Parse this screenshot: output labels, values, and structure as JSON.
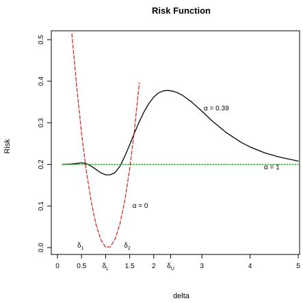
{
  "chart_data": {
    "type": "line",
    "title": "Risk Function",
    "xlabel": "delta",
    "ylabel": "Risk",
    "xlim": [
      0,
      5
    ],
    "ylim": [
      0,
      0.5
    ],
    "grid": false,
    "y_ticks": [
      {
        "value": 0.0,
        "label": "0.0"
      },
      {
        "value": 0.1,
        "label": "0.1"
      },
      {
        "value": 0.2,
        "label": "0.2"
      },
      {
        "value": 0.3,
        "label": "0.3"
      },
      {
        "value": 0.4,
        "label": "0.4"
      },
      {
        "value": 0.5,
        "label": "0.5"
      }
    ],
    "x_ticks": [
      {
        "value": 0,
        "label": "0"
      },
      {
        "value": 0.5,
        "label": "0.5"
      },
      {
        "value": 1.0,
        "label": "δ",
        "sub": "L"
      },
      {
        "value": 1.5,
        "label": "1.5"
      },
      {
        "value": 2.0,
        "label": "2"
      },
      {
        "value": 2.35,
        "label": "δ",
        "sub": "U"
      },
      {
        "value": 3.0,
        "label": "3"
      },
      {
        "value": 4.0,
        "label": "4"
      },
      {
        "value": 5.0,
        "label": "5"
      }
    ],
    "series": [
      {
        "name": "α = 0.39",
        "color": "#000000",
        "dash": "solid",
        "x": [
          0.1,
          0.3,
          0.5,
          0.6,
          0.7,
          0.8,
          0.9,
          1.0,
          1.1,
          1.2,
          1.3,
          1.4,
          1.5,
          1.6,
          1.7,
          1.8,
          1.9,
          2.0,
          2.1,
          2.2,
          2.3,
          2.35,
          2.4,
          2.5,
          2.6,
          2.8,
          3.0,
          3.2,
          3.5,
          3.8,
          4.0,
          4.3,
          4.6,
          4.8,
          5.0
        ],
        "y": [
          0.2,
          0.201,
          0.204,
          0.202,
          0.196,
          0.188,
          0.18,
          0.175,
          0.175,
          0.181,
          0.196,
          0.22,
          0.247,
          0.276,
          0.303,
          0.327,
          0.347,
          0.362,
          0.372,
          0.377,
          0.378,
          0.377,
          0.376,
          0.372,
          0.366,
          0.349,
          0.328,
          0.306,
          0.277,
          0.254,
          0.242,
          0.228,
          0.218,
          0.213,
          0.208
        ]
      },
      {
        "name": "α = 1",
        "color": "#22bb22",
        "dash": "dotted",
        "x": [
          0.1,
          5.0
        ],
        "y": [
          0.2,
          0.2
        ]
      },
      {
        "name": "α = 0",
        "color": "#d62728",
        "dash": "dashed",
        "x": [
          0.3,
          0.4,
          0.5,
          0.6,
          0.7,
          0.8,
          0.9,
          1.0,
          1.1,
          1.2,
          1.3,
          1.4,
          1.5,
          1.6,
          1.7
        ],
        "y": [
          0.514,
          0.386,
          0.276,
          0.184,
          0.111,
          0.056,
          0.019,
          0.001,
          0.002,
          0.021,
          0.058,
          0.114,
          0.189,
          0.283,
          0.396
        ]
      }
    ],
    "annotations": [
      {
        "text": "α = 0.39",
        "x": 3.3,
        "y": 0.33
      },
      {
        "text": "α = 1",
        "x": 4.45,
        "y": 0.188
      },
      {
        "text": "α = 0",
        "x": 1.72,
        "y": 0.095
      },
      {
        "text": "δ",
        "sub": "1",
        "x": 0.48,
        "y": 0.0
      },
      {
        "text": "δ",
        "sub": "2",
        "x": 1.45,
        "y": 0.0
      }
    ]
  }
}
